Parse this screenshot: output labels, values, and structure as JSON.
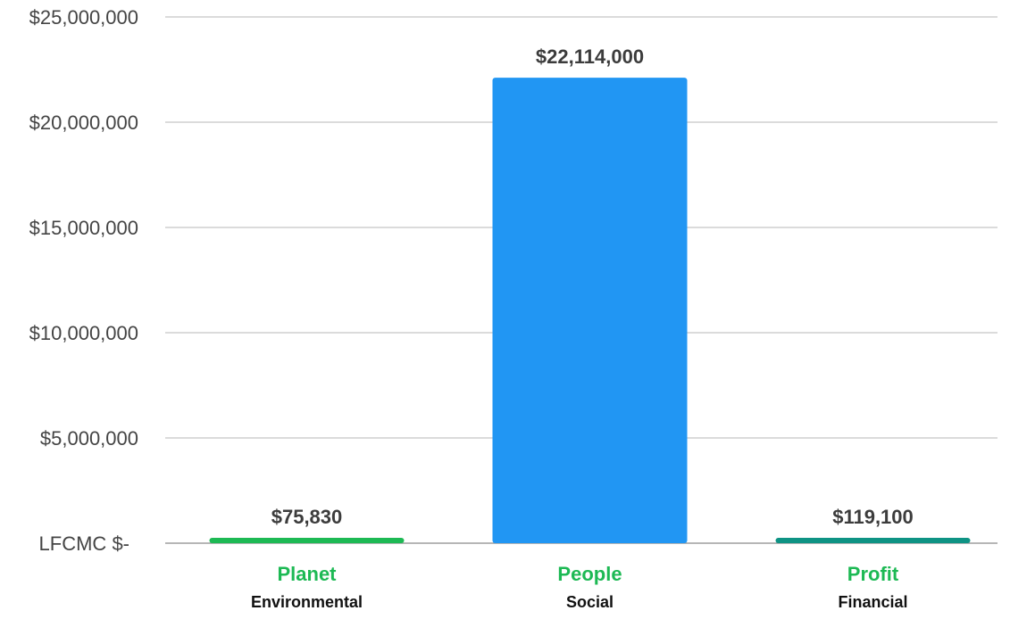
{
  "chart_data": {
    "type": "bar",
    "title": "",
    "xlabel": "",
    "ylabel": "",
    "ylim": [
      0,
      25000000
    ],
    "grid": true,
    "y_ticks": [
      {
        "value": 0,
        "label": "$-"
      },
      {
        "value": 5000000,
        "label": "$5,000,000"
      },
      {
        "value": 10000000,
        "label": "$10,000,000"
      },
      {
        "value": 15000000,
        "label": "$15,000,000"
      },
      {
        "value": 20000000,
        "label": "$20,000,000"
      },
      {
        "value": 25000000,
        "label": "$25,000,000"
      }
    ],
    "y_axis_prefix_text": "LFCMC",
    "categories": [
      "Planet",
      "People",
      "Profit"
    ],
    "subcategories": [
      "Environmental",
      "Social",
      "Financial"
    ],
    "values": [
      75830,
      22114000,
      119100
    ],
    "value_labels": [
      "$75,830",
      "$22,114,000",
      "$119,100"
    ],
    "bar_colors": [
      "#1db954",
      "#2196f3",
      "#0e9384"
    ],
    "category_label_color": "#1db954"
  }
}
